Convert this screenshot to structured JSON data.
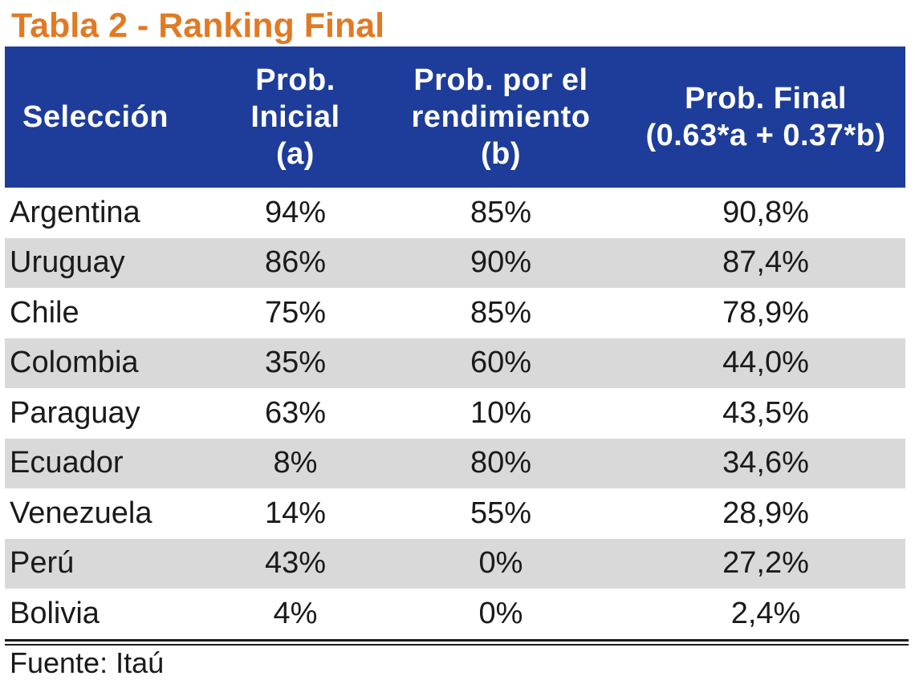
{
  "title": "Tabla 2 - Ranking Final",
  "header": {
    "col1": [
      "Selección"
    ],
    "col2": [
      "Prob.",
      "Inicial",
      "(a)"
    ],
    "col3": [
      "Prob. por el",
      "rendimiento",
      "(b)"
    ],
    "col4": [
      "Prob. Final",
      "(0.63*a + 0.37*b)"
    ]
  },
  "rows": [
    {
      "team": "Argentina",
      "initial": "94%",
      "performance": "85%",
      "final": "90,8%"
    },
    {
      "team": "Uruguay",
      "initial": "86%",
      "performance": "90%",
      "final": "87,4%"
    },
    {
      "team": "Chile",
      "initial": "75%",
      "performance": "85%",
      "final": "78,9%"
    },
    {
      "team": "Colombia",
      "initial": "35%",
      "performance": "60%",
      "final": "44,0%"
    },
    {
      "team": "Paraguay",
      "initial": "63%",
      "performance": "10%",
      "final": "43,5%"
    },
    {
      "team": "Ecuador",
      "initial": "8%",
      "performance": "80%",
      "final": "34,6%"
    },
    {
      "team": "Venezuela",
      "initial": "14%",
      "performance": "55%",
      "final": "28,9%"
    },
    {
      "team": "Perú",
      "initial": "43%",
      "performance": "0%",
      "final": "27,2%"
    },
    {
      "team": "Bolivia",
      "initial": "4%",
      "performance": "0%",
      "final": "2,4%"
    }
  ],
  "source": "Fuente: Itaú",
  "colors": {
    "title": "#e07a25",
    "header_bg": "#1e3d9a",
    "stripe": "#d9d9d9"
  }
}
